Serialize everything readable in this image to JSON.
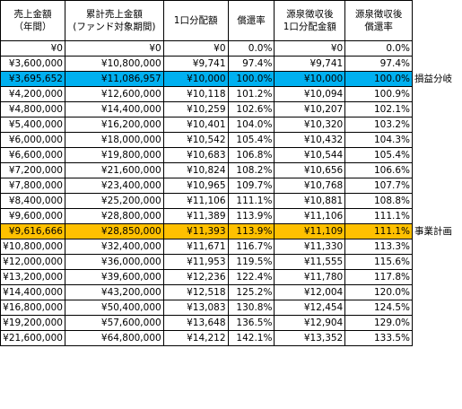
{
  "headers": {
    "sales": "売上金額\n（年間）",
    "cumulative": "累計売上金額\n(ファンド対象期間)",
    "dividend": "1口分配額",
    "rate": "償還率",
    "after_tax_dividend": "源泉徴収後\n1口分配金額",
    "after_tax_rate": "源泉徴収後\n償還率"
  },
  "rows": [
    {
      "sales": "¥0",
      "cumulative": "¥0",
      "dividend": "¥0",
      "rate": "0.0%",
      "after_dividend": "¥0",
      "after_rate": "0.0%",
      "note": "",
      "highlight": ""
    },
    {
      "sales": "¥3,600,000",
      "cumulative": "¥10,800,000",
      "dividend": "¥9,741",
      "rate": "97.4%",
      "after_dividend": "¥9,741",
      "after_rate": "97.4%",
      "note": "",
      "highlight": ""
    },
    {
      "sales": "¥3,695,652",
      "cumulative": "¥11,086,957",
      "dividend": "¥10,000",
      "rate": "100.0%",
      "after_dividend": "¥10,000",
      "after_rate": "100.0%",
      "note": "損益分岐",
      "highlight": "blue"
    },
    {
      "sales": "¥4,200,000",
      "cumulative": "¥12,600,000",
      "dividend": "¥10,118",
      "rate": "101.2%",
      "after_dividend": "¥10,094",
      "after_rate": "100.9%",
      "note": "",
      "highlight": ""
    },
    {
      "sales": "¥4,800,000",
      "cumulative": "¥14,400,000",
      "dividend": "¥10,259",
      "rate": "102.6%",
      "after_dividend": "¥10,207",
      "after_rate": "102.1%",
      "note": "",
      "highlight": ""
    },
    {
      "sales": "¥5,400,000",
      "cumulative": "¥16,200,000",
      "dividend": "¥10,401",
      "rate": "104.0%",
      "after_dividend": "¥10,320",
      "after_rate": "103.2%",
      "note": "",
      "highlight": ""
    },
    {
      "sales": "¥6,000,000",
      "cumulative": "¥18,000,000",
      "dividend": "¥10,542",
      "rate": "105.4%",
      "after_dividend": "¥10,432",
      "after_rate": "104.3%",
      "note": "",
      "highlight": ""
    },
    {
      "sales": "¥6,600,000",
      "cumulative": "¥19,800,000",
      "dividend": "¥10,683",
      "rate": "106.8%",
      "after_dividend": "¥10,544",
      "after_rate": "105.4%",
      "note": "",
      "highlight": ""
    },
    {
      "sales": "¥7,200,000",
      "cumulative": "¥21,600,000",
      "dividend": "¥10,824",
      "rate": "108.2%",
      "after_dividend": "¥10,656",
      "after_rate": "106.6%",
      "note": "",
      "highlight": ""
    },
    {
      "sales": "¥7,800,000",
      "cumulative": "¥23,400,000",
      "dividend": "¥10,965",
      "rate": "109.7%",
      "after_dividend": "¥10,768",
      "after_rate": "107.7%",
      "note": "",
      "highlight": ""
    },
    {
      "sales": "¥8,400,000",
      "cumulative": "¥25,200,000",
      "dividend": "¥11,106",
      "rate": "111.1%",
      "after_dividend": "¥10,881",
      "after_rate": "108.8%",
      "note": "",
      "highlight": ""
    },
    {
      "sales": "¥9,600,000",
      "cumulative": "¥28,800,000",
      "dividend": "¥11,389",
      "rate": "113.9%",
      "after_dividend": "¥11,106",
      "after_rate": "111.1%",
      "note": "",
      "highlight": ""
    },
    {
      "sales": "¥9,616,666",
      "cumulative": "¥28,850,000",
      "dividend": "¥11,393",
      "rate": "113.9%",
      "after_dividend": "¥11,109",
      "after_rate": "111.1%",
      "note": "事業計画",
      "highlight": "orange"
    },
    {
      "sales": "¥10,800,000",
      "cumulative": "¥32,400,000",
      "dividend": "¥11,671",
      "rate": "116.7%",
      "after_dividend": "¥11,330",
      "after_rate": "113.3%",
      "note": "",
      "highlight": ""
    },
    {
      "sales": "¥12,000,000",
      "cumulative": "¥36,000,000",
      "dividend": "¥11,953",
      "rate": "119.5%",
      "after_dividend": "¥11,555",
      "after_rate": "115.6%",
      "note": "",
      "highlight": ""
    },
    {
      "sales": "¥13,200,000",
      "cumulative": "¥39,600,000",
      "dividend": "¥12,236",
      "rate": "122.4%",
      "after_dividend": "¥11,780",
      "after_rate": "117.8%",
      "note": "",
      "highlight": ""
    },
    {
      "sales": "¥14,400,000",
      "cumulative": "¥43,200,000",
      "dividend": "¥12,518",
      "rate": "125.2%",
      "after_dividend": "¥12,004",
      "after_rate": "120.0%",
      "note": "",
      "highlight": ""
    },
    {
      "sales": "¥16,800,000",
      "cumulative": "¥50,400,000",
      "dividend": "¥13,083",
      "rate": "130.8%",
      "after_dividend": "¥12,454",
      "after_rate": "124.5%",
      "note": "",
      "highlight": ""
    },
    {
      "sales": "¥19,200,000",
      "cumulative": "¥57,600,000",
      "dividend": "¥13,648",
      "rate": "136.5%",
      "after_dividend": "¥12,904",
      "after_rate": "129.0%",
      "note": "",
      "highlight": ""
    },
    {
      "sales": "¥21,600,000",
      "cumulative": "¥64,800,000",
      "dividend": "¥14,212",
      "rate": "142.1%",
      "after_dividend": "¥13,352",
      "after_rate": "133.5%",
      "note": "",
      "highlight": ""
    }
  ]
}
